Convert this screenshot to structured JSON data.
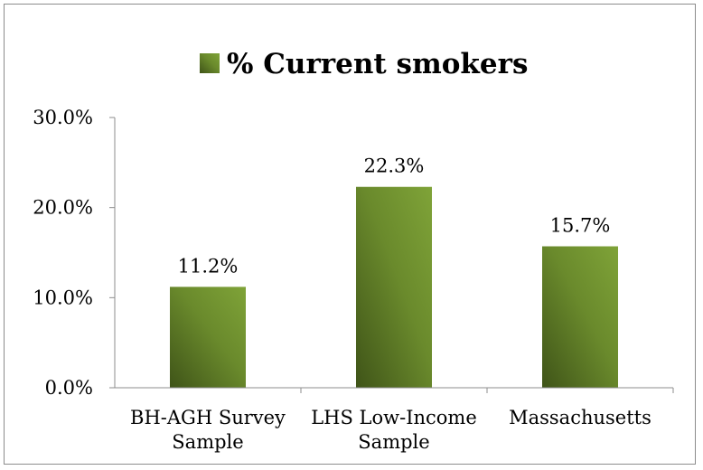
{
  "chart_data": {
    "type": "bar",
    "categories": [
      [
        "BH-AGH Survey",
        "Sample"
      ],
      [
        "LHS Low-Income",
        "Sample"
      ],
      [
        "Massachusetts"
      ]
    ],
    "series": [
      {
        "name": "% Current smokers",
        "values": [
          11.2,
          22.3,
          15.7
        ],
        "data_labels": [
          "11.2%",
          "22.3%",
          "15.7%"
        ],
        "color": "#6f8f2e"
      }
    ],
    "ylim": [
      0,
      30
    ],
    "yticks": [
      0,
      10,
      20,
      30
    ],
    "ytick_labels": [
      "0.0%",
      "10.0%",
      "20.0%",
      "30.0%"
    ],
    "legend": {
      "position": "top",
      "label": "% Current smokers"
    },
    "grid": false
  }
}
